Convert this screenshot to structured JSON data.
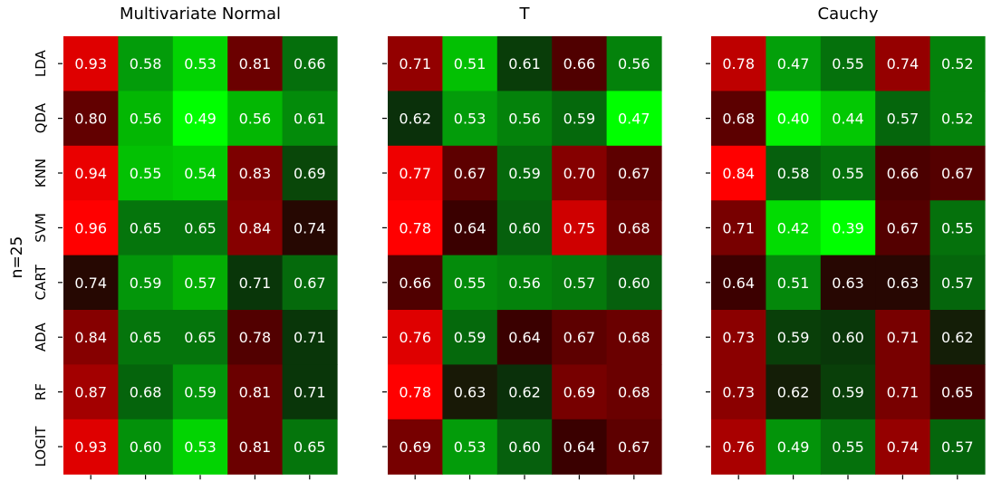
{
  "chart_data": {
    "type": "heatmap",
    "ylabel": "n=25",
    "row_labels": [
      "LDA",
      "QDA",
      "KNN",
      "SVM",
      "CART",
      "ADA",
      "RF",
      "LOGIT"
    ],
    "panels": [
      {
        "title": "Multivariate Normal",
        "values": [
          [
            0.93,
            0.58,
            0.53,
            0.81,
            0.66
          ],
          [
            0.8,
            0.56,
            0.49,
            0.56,
            0.61
          ],
          [
            0.94,
            0.55,
            0.54,
            0.83,
            0.69
          ],
          [
            0.96,
            0.65,
            0.65,
            0.84,
            0.74
          ],
          [
            0.74,
            0.59,
            0.57,
            0.71,
            0.67
          ],
          [
            0.84,
            0.65,
            0.65,
            0.78,
            0.71
          ],
          [
            0.87,
            0.68,
            0.59,
            0.81,
            0.71
          ],
          [
            0.93,
            0.6,
            0.53,
            0.81,
            0.65
          ]
        ]
      },
      {
        "title": "T",
        "values": [
          [
            0.71,
            0.51,
            0.61,
            0.66,
            0.56
          ],
          [
            0.62,
            0.53,
            0.56,
            0.59,
            0.47
          ],
          [
            0.77,
            0.67,
            0.59,
            0.7,
            0.67
          ],
          [
            0.78,
            0.64,
            0.6,
            0.75,
            0.68
          ],
          [
            0.66,
            0.55,
            0.56,
            0.57,
            0.6
          ],
          [
            0.76,
            0.59,
            0.64,
            0.67,
            0.68
          ],
          [
            0.78,
            0.63,
            0.62,
            0.69,
            0.68
          ],
          [
            0.69,
            0.53,
            0.6,
            0.64,
            0.67
          ]
        ]
      },
      {
        "title": "Cauchy",
        "values": [
          [
            0.78,
            0.47,
            0.55,
            0.74,
            0.52
          ],
          [
            0.68,
            0.4,
            0.44,
            0.57,
            0.52
          ],
          [
            0.84,
            0.58,
            0.55,
            0.66,
            0.67
          ],
          [
            0.71,
            0.42,
            0.39,
            0.67,
            0.55
          ],
          [
            0.64,
            0.51,
            0.63,
            0.63,
            0.57
          ],
          [
            0.73,
            0.59,
            0.6,
            0.71,
            0.62
          ],
          [
            0.73,
            0.62,
            0.59,
            0.71,
            0.65
          ],
          [
            0.76,
            0.49,
            0.55,
            0.74,
            0.57
          ]
        ]
      }
    ],
    "colormap": {
      "type": "diverging",
      "low_color": "#00ff00",
      "mid_color": "#0a2a0a",
      "high_color": "#ff0000"
    }
  }
}
